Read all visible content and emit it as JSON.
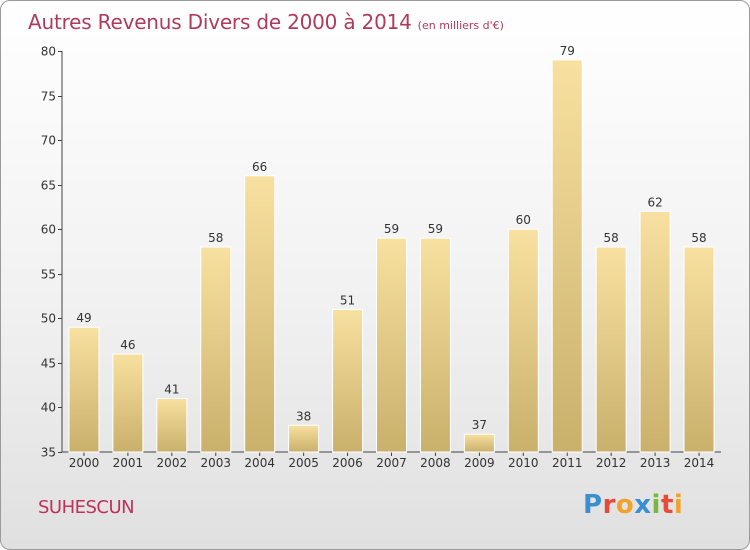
{
  "title": "Autres Revenus Divers de 2000 à 2014",
  "unit": "(en milliers d'€)",
  "location": "SUHESCUN",
  "logo": {
    "letters": [
      {
        "ch": "P",
        "color": "#3a8fd0"
      },
      {
        "ch": "r",
        "color": "#e84a3a"
      },
      {
        "ch": "o",
        "color": "#f2a22b"
      },
      {
        "ch": "x",
        "color": "#3a8fd0"
      },
      {
        "ch": "i",
        "color": "#7ab83c"
      },
      {
        "ch": "t",
        "color": "#e84a3a"
      },
      {
        "ch": "i",
        "color": "#f2a22b"
      }
    ]
  },
  "colors": {
    "title": "#b03a5b",
    "bar_light": "#f8e0a0",
    "bar_dark": "#c9b06b"
  },
  "chart_data": {
    "type": "bar",
    "title": "Autres Revenus Divers de 2000 à 2014",
    "categories": [
      "2000",
      "2001",
      "2002",
      "2003",
      "2004",
      "2005",
      "2006",
      "2007",
      "2008",
      "2009",
      "2010",
      "2011",
      "2012",
      "2013",
      "2014"
    ],
    "values": [
      49,
      46,
      41,
      58,
      66,
      38,
      51,
      59,
      59,
      37,
      60,
      79,
      58,
      62,
      58
    ],
    "ylim": [
      35,
      80
    ],
    "yticks": [
      35,
      40,
      45,
      50,
      55,
      60,
      65,
      70,
      75,
      80
    ],
    "xlabel": "",
    "ylabel": "",
    "grid": false
  }
}
